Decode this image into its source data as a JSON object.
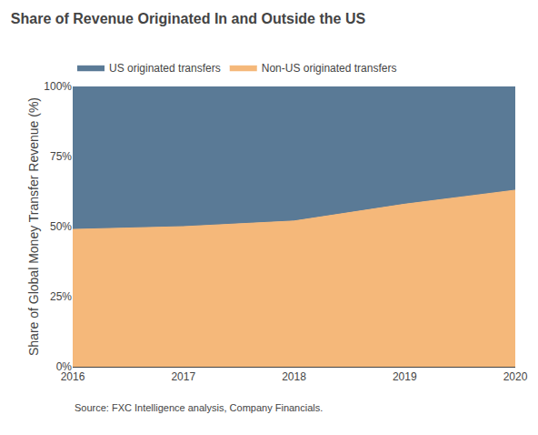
{
  "chart_data": {
    "type": "area",
    "stacked": true,
    "title": "Share of Revenue Originated In and Outside the US",
    "ylabel": "Share of Global Money Transfer Revenue (%)",
    "annotations": [
      "Source: FXC Intelligence analysis, Company Financials."
    ],
    "x": [
      2016,
      2017,
      2018,
      2019,
      2020
    ],
    "series": [
      {
        "name": "Non-US originated transfers",
        "color": "#F5B87A",
        "values": [
          49,
          50,
          52,
          58,
          63
        ]
      },
      {
        "name": "US originated transfers",
        "color": "#5A7A96",
        "values": [
          51,
          50,
          48,
          42,
          37
        ]
      }
    ],
    "xlim": [
      2016,
      2020
    ],
    "xticks": [
      2016,
      2017,
      2018,
      2019,
      2020
    ],
    "ylim": [
      0,
      100
    ],
    "yticks": [
      {
        "value": 0,
        "label": "0%"
      },
      {
        "value": 25,
        "label": "25%"
      },
      {
        "value": 50,
        "label": "50%"
      },
      {
        "value": 75,
        "label": "75%"
      },
      {
        "value": 100,
        "label": "100%"
      }
    ],
    "grid": false,
    "legend": "top left"
  }
}
